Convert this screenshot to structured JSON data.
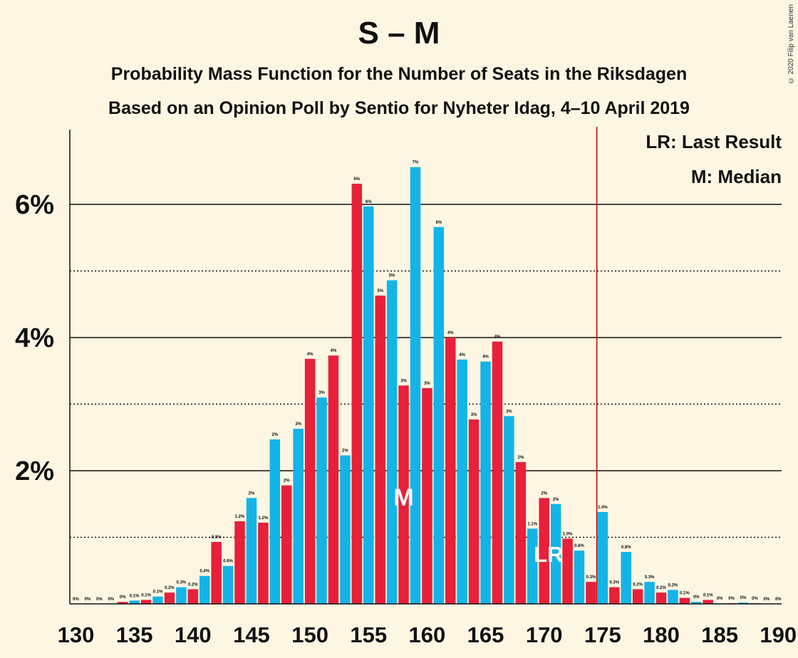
{
  "title": "S – M",
  "subtitle1": "Probability Mass Function for the Number of Seats in the Riksdagen",
  "subtitle2": "Based on an Opinion Poll by Sentio for Nyheter Idag, 4–10 April 2019",
  "copyright": "© 2020 Filip van Laenen",
  "legend": {
    "lr": "LR: Last Result",
    "m": "M: Median"
  },
  "colors": {
    "red": "#e8203a",
    "blue": "#14b4e6",
    "line": "#c00000",
    "background": "#fdf6e3"
  },
  "chart_data": {
    "type": "bar",
    "x": [
      130,
      131,
      132,
      133,
      134,
      135,
      136,
      137,
      138,
      139,
      140,
      141,
      142,
      143,
      144,
      145,
      146,
      147,
      148,
      149,
      150,
      151,
      152,
      153,
      154,
      155,
      156,
      157,
      158,
      159,
      160,
      161,
      162,
      163,
      164,
      165,
      166,
      167,
      168,
      169,
      170,
      171,
      172,
      173,
      174,
      175,
      176,
      177,
      178,
      179,
      180,
      181,
      182,
      183,
      184,
      185,
      186,
      187,
      188,
      189,
      190
    ],
    "values": [
      0,
      0,
      0,
      0,
      0.03,
      0.05,
      0.06,
      0.11,
      0.17,
      0.25,
      0.22,
      0.42,
      0.93,
      0.57,
      1.24,
      1.59,
      1.22,
      2.47,
      1.78,
      2.63,
      3.68,
      3.1,
      3.73,
      2.23,
      6.31,
      5.97,
      4.63,
      4.86,
      3.28,
      6.56,
      3.24,
      5.66,
      4.0,
      3.67,
      2.77,
      3.64,
      3.94,
      2.82,
      2.13,
      1.13,
      1.59,
      1.5,
      0.98,
      0.8,
      0.33,
      1.38,
      0.25,
      0.78,
      0.22,
      0.33,
      0.17,
      0.21,
      0.09,
      0.03,
      0.06,
      0.01,
      0.01,
      0.02,
      0.01,
      0,
      0
    ],
    "value_labels": [
      "0%",
      "0%",
      "0%",
      "0%",
      "0%",
      "0.1%",
      "0.1%",
      "0.1%",
      "0.2%",
      "0.3%",
      "0.2%",
      "0.4%",
      "0.9%",
      "0.6%",
      "1.2%",
      "2%",
      "1.2%",
      "2%",
      "2%",
      "3%",
      "4%",
      "3%",
      "4%",
      "2%",
      "6%",
      "6%",
      "5%",
      "5%",
      "3%",
      "7%",
      "3%",
      "6%",
      "4%",
      "4%",
      "3%",
      "4%",
      "4%",
      "3%",
      "2%",
      "1.1%",
      "2%",
      "2%",
      "1.0%",
      "0.8%",
      "0.3%",
      "1.4%",
      "0.3%",
      "0.8%",
      "0.2%",
      "0.3%",
      "0.2%",
      "0.2%",
      "0.1%",
      "0%",
      "0.1%",
      "0%",
      "0%",
      "0%",
      "0%",
      "0%",
      "0%"
    ],
    "x_ticks": [
      "130",
      "135",
      "140",
      "145",
      "150",
      "155",
      "160",
      "165",
      "170",
      "175",
      "180",
      "185",
      "190"
    ],
    "y_ticks": [
      "2%",
      "4%",
      "6%"
    ],
    "ylim": [
      0,
      7.1
    ],
    "last_result": 175,
    "median": 158,
    "median_label": "M",
    "last_result_label": "LR",
    "color_pattern": "even seats red, odd seats blue"
  }
}
